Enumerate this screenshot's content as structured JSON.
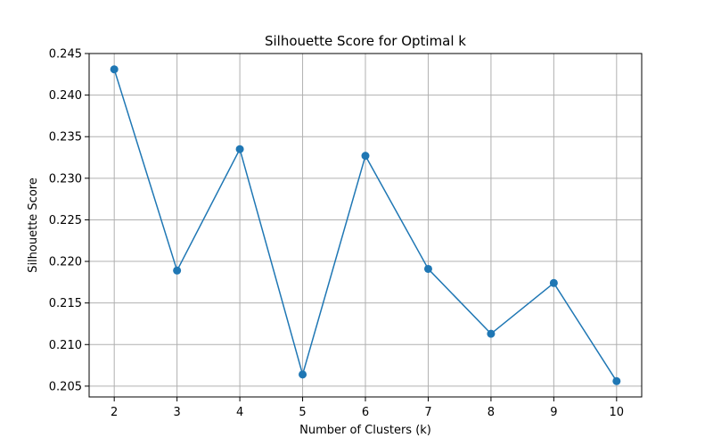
{
  "chart_data": {
    "type": "line",
    "title": "Silhouette Score for Optimal k",
    "xlabel": "Number of Clusters (k)",
    "ylabel": "Silhouette Score",
    "x": [
      2,
      3,
      4,
      5,
      6,
      7,
      8,
      9,
      10
    ],
    "series": [
      {
        "values": [
          0.2431,
          0.2189,
          0.2335,
          0.2064,
          0.2327,
          0.2191,
          0.2113,
          0.2174,
          0.2056
        ],
        "color": "#1f77b4",
        "marker": "circle"
      }
    ],
    "xlim": [
      1.6,
      10.4
    ],
    "ylim": [
      0.2037,
      0.245
    ],
    "xticks": [
      2,
      3,
      4,
      5,
      6,
      7,
      8,
      9,
      10
    ],
    "yticks": [
      0.205,
      0.21,
      0.215,
      0.22,
      0.225,
      0.23,
      0.235,
      0.24,
      0.245
    ],
    "ytick_labels": [
      "0.205",
      "0.210",
      "0.215",
      "0.220",
      "0.225",
      "0.230",
      "0.235",
      "0.240",
      "0.245"
    ],
    "grid": true,
    "grid_color": "#b0b0b0"
  }
}
